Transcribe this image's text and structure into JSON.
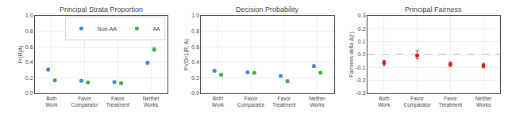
{
  "chart_data": [
    {
      "type": "scatter",
      "title": "Principal Strata Proportion",
      "ylabel": "Pr(R|A)",
      "categories": [
        "Both\nWork",
        "Favor\nComparator",
        "Favor\nTreatment",
        "Neither\nWorks"
      ],
      "series": [
        {
          "name": "Non-AA",
          "color": "#4488cc",
          "values": [
            0.305,
            0.16,
            0.145,
            0.395
          ],
          "error_minus": [
            0.018,
            0.012,
            0.01,
            0.018
          ],
          "error_plus": [
            0.018,
            0.012,
            0.01,
            0.018
          ]
        },
        {
          "name": "AA",
          "color": "#44aa44",
          "values": [
            0.165,
            0.14,
            0.13,
            0.565
          ],
          "error_minus": [
            0.015,
            0.012,
            0.01,
            0.022
          ],
          "error_plus": [
            0.015,
            0.012,
            0.01,
            0.022
          ]
        }
      ],
      "marker": "circle",
      "ylim": [
        0.0,
        1.0
      ],
      "yticks": [
        {
          "value": 0.0,
          "label": "0.0"
        },
        0.2,
        0.4,
        0.6,
        0.8,
        {
          "value": 1.0,
          "label": "1.0"
        }
      ],
      "grid": true,
      "legend": "upper right"
    },
    {
      "type": "scatter",
      "title": "Decision Probability",
      "ylabel": "Pr(D=1|R, A)",
      "categories": [
        "Both\nWork",
        "Favor\nComparator",
        "Favor\nTreatment",
        "Neither\nWorks"
      ],
      "series": [
        {
          "color": "#4488cc",
          "values": [
            0.29,
            0.27,
            0.225,
            0.35
          ],
          "error_minus": [
            0.015,
            0.012,
            0.012,
            0.018
          ],
          "error_plus": [
            0.015,
            0.012,
            0.012,
            0.018
          ]
        },
        {
          "color": "#44aa44",
          "values": [
            0.24,
            0.262,
            0.155,
            0.265
          ],
          "error_minus": [
            0.015,
            0.012,
            0.018,
            0.012
          ],
          "error_plus": [
            0.015,
            0.012,
            0.018,
            0.012
          ]
        }
      ],
      "marker": "circle",
      "ylim": [
        0.0,
        1.0
      ],
      "yticks": [
        {
          "value": 0.0,
          "label": "0.0"
        },
        0.2,
        0.4,
        0.6,
        0.8,
        {
          "value": 1.0,
          "label": "1.0"
        }
      ],
      "grid": true
    },
    {
      "type": "scatter",
      "title": "Principal Fairness",
      "ylabel": "Fairness delta Δ(r)",
      "categories": [
        "Both\nWork",
        "Favor\nComparator",
        "Favor\nTreatment",
        "Neither\nWorks"
      ],
      "values": [
        -0.065,
        -0.008,
        -0.075,
        -0.085
      ],
      "error_minus": [
        0.02,
        0.025,
        0.018,
        0.018
      ],
      "error_plus": [
        0.02,
        0.038,
        0.018,
        0.018
      ],
      "color": "#cc2222",
      "marker": "circle",
      "hline": 0.0,
      "line_style": "dashed",
      "ylim": [
        -0.3,
        0.3
      ],
      "yticks": [
        -0.3,
        -0.2,
        -0.1,
        {
          "value": 0.0,
          "label": "0.0"
        },
        0.1,
        0.2,
        0.3
      ],
      "grid": true
    }
  ]
}
